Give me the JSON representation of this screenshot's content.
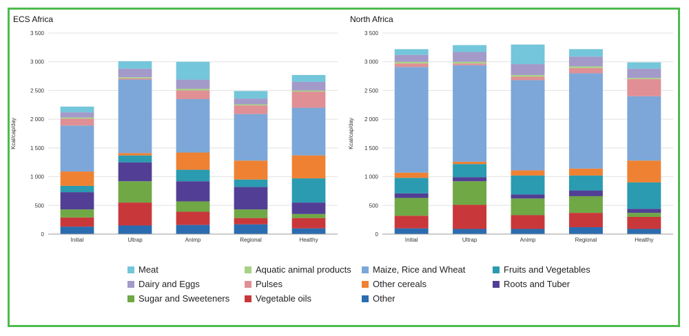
{
  "chart_data": [
    {
      "type": "bar",
      "stacked": true,
      "title": "ECS Africa",
      "xlabel": "",
      "ylabel": "Kcal/cap/day",
      "ylim": [
        0,
        3500
      ],
      "yticks": [
        "0",
        "500",
        "1 000",
        "1 500",
        "2 000",
        "2 500",
        "3 000",
        "3 500"
      ],
      "ytick_values": [
        0,
        500,
        1000,
        1500,
        2000,
        2500,
        3000,
        3500
      ],
      "categories": [
        "Initial",
        "Ultrap",
        "Animp",
        "Regional",
        "Healthy"
      ],
      "series": [
        {
          "name": "Other",
          "values": [
            130,
            150,
            160,
            170,
            100
          ]
        },
        {
          "name": "Vegetable oils",
          "values": [
            160,
            400,
            230,
            110,
            180
          ]
        },
        {
          "name": "Sugar and Sweeteners",
          "values": [
            140,
            370,
            180,
            150,
            70
          ]
        },
        {
          "name": "Roots and Tuber",
          "values": [
            300,
            330,
            350,
            390,
            200
          ]
        },
        {
          "name": "Fruits and Vegetables",
          "values": [
            110,
            120,
            200,
            130,
            420
          ]
        },
        {
          "name": "Other cereals",
          "values": [
            250,
            40,
            300,
            330,
            400
          ]
        },
        {
          "name": "Maize, Rice and Wheat",
          "values": [
            800,
            1280,
            930,
            810,
            830
          ]
        },
        {
          "name": "Pulses",
          "values": [
            120,
            20,
            150,
            150,
            280
          ]
        },
        {
          "name": "Aquatic animal products",
          "values": [
            20,
            20,
            30,
            20,
            20
          ]
        },
        {
          "name": "Dairy and Eggs",
          "values": [
            90,
            150,
            160,
            100,
            150
          ]
        },
        {
          "name": "Meat",
          "values": [
            100,
            130,
            310,
            130,
            120
          ]
        }
      ]
    },
    {
      "type": "bar",
      "stacked": true,
      "title": "North Africa",
      "xlabel": "",
      "ylabel": "Kcal/cap/day",
      "ylim": [
        0,
        3500
      ],
      "yticks": [
        "0",
        "500",
        "1 000",
        "1 500",
        "2 000",
        "2 500",
        "3 000",
        "3 500"
      ],
      "ytick_values": [
        0,
        500,
        1000,
        1500,
        2000,
        2500,
        3000,
        3500
      ],
      "categories": [
        "Initial",
        "Ultrap",
        "Animp",
        "Regional",
        "Healthy"
      ],
      "series": [
        {
          "name": "Other",
          "values": [
            100,
            90,
            90,
            120,
            90
          ]
        },
        {
          "name": "Vegetable oils",
          "values": [
            220,
            420,
            240,
            250,
            210
          ]
        },
        {
          "name": "Sugar and Sweeteners",
          "values": [
            310,
            410,
            290,
            290,
            70
          ]
        },
        {
          "name": "Roots and Tuber",
          "values": [
            80,
            70,
            70,
            100,
            70
          ]
        },
        {
          "name": "Fruits and Vegetables",
          "values": [
            270,
            230,
            330,
            260,
            460
          ]
        },
        {
          "name": "Other cereals",
          "values": [
            90,
            40,
            90,
            120,
            380
          ]
        },
        {
          "name": "Maize, Rice and Wheat",
          "values": [
            1840,
            1680,
            1570,
            1660,
            1120
          ]
        },
        {
          "name": "Pulses",
          "values": [
            60,
            30,
            60,
            90,
            300
          ]
        },
        {
          "name": "Aquatic animal products",
          "values": [
            30,
            30,
            30,
            30,
            20
          ]
        },
        {
          "name": "Dairy and Eggs",
          "values": [
            120,
            170,
            190,
            170,
            160
          ]
        },
        {
          "name": "Meat",
          "values": [
            100,
            120,
            340,
            130,
            110
          ]
        }
      ]
    }
  ],
  "colors": {
    "Meat": "#74c6da",
    "Dairy and Eggs": "#a39ac9",
    "Sugar and Sweeteners": "#6fa845",
    "Aquatic animal products": "#a7d184",
    "Pulses": "#e08f95",
    "Vegetable oils": "#c8383b",
    "Maize, Rice and Wheat": "#7ca7d8",
    "Other cereals": "#ef8133",
    "Other": "#2b6cb0",
    "Fruits and Vegetables": "#2a9bb0",
    "Roots and Tuber": "#523f95",
    "border": "#4dbb4d"
  },
  "legend": [
    [
      "Meat",
      "Aquatic animal products",
      "Maize, Rice and Wheat",
      "Fruits and Vegetables"
    ],
    [
      "Dairy and Eggs",
      "Pulses",
      "Other cereals",
      "Roots and Tuber"
    ],
    [
      "Sugar and Sweeteners",
      "Vegetable oils",
      "Other"
    ]
  ]
}
